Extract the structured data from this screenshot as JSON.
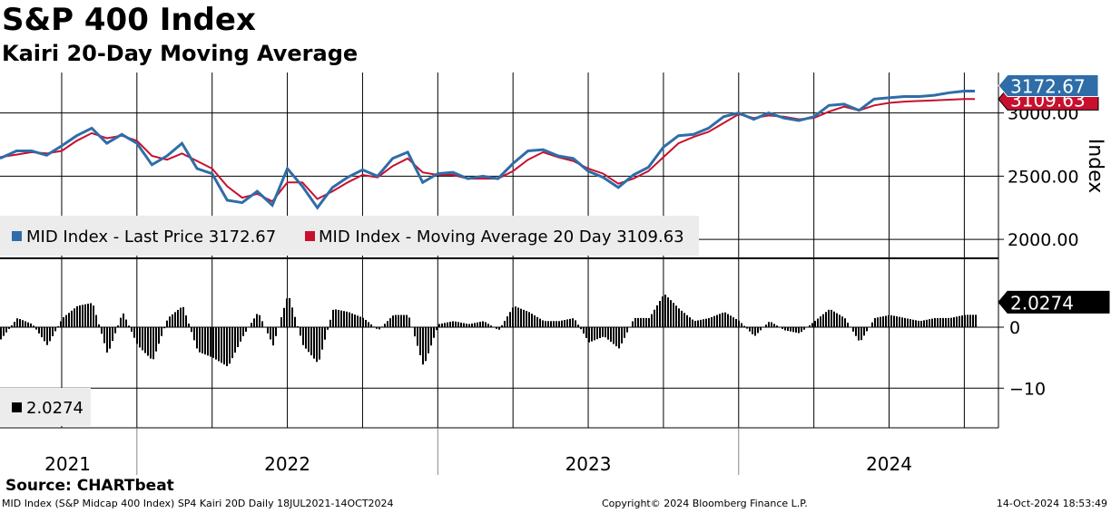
{
  "header": {
    "title": "S&P 400 Index",
    "subtitle": "Kairi 20-Day Moving Average"
  },
  "footer": {
    "source": "Source: CHARTbeat",
    "left": "MID Index (S&P Midcap 400 Index) SP4 Kairi 20D  Daily 18JUL2021-14OCT2024",
    "center": "Copyright© 2024 Bloomberg Finance L.P.",
    "right": "14-Oct-2024 18:53:49"
  },
  "colors": {
    "price": "#2e6da8",
    "ma": "#c8102e",
    "kairi": "#000000",
    "grid": "#000000"
  },
  "chart_data": [
    {
      "type": "line",
      "panel": "upper",
      "ylabel": "Index",
      "ylim": [
        1850,
        3320
      ],
      "yticks": [
        2000,
        2500,
        3000
      ],
      "ytick_labels": [
        "2000.00",
        "2500.00",
        "3000.00"
      ],
      "xlim": [
        2021.545,
        2024.785
      ],
      "x_gridlines": [
        2021.25,
        2021.5,
        2021.75,
        2022.0,
        2022.25,
        2022.5,
        2022.75,
        2023.0,
        2023.25,
        2023.5,
        2023.75,
        2024.0,
        2024.25,
        2024.5,
        2024.75
      ],
      "years": [
        {
          "label": "2021",
          "center": 2021.77
        },
        {
          "label": "2022",
          "center": 2022.5
        },
        {
          "label": "2023",
          "center": 2023.5
        },
        {
          "label": "2024",
          "center": 2024.5
        }
      ],
      "year_separators": [
        2022.0,
        2023.0,
        2024.0
      ],
      "x": [
        2021.545,
        2021.6,
        2021.65,
        2021.7,
        2021.75,
        2021.8,
        2021.85,
        2021.9,
        2021.95,
        2022.0,
        2022.05,
        2022.1,
        2022.15,
        2022.2,
        2022.25,
        2022.3,
        2022.35,
        2022.4,
        2022.45,
        2022.5,
        2022.55,
        2022.6,
        2022.65,
        2022.7,
        2022.75,
        2022.8,
        2022.85,
        2022.9,
        2022.95,
        2023.0,
        2023.05,
        2023.1,
        2023.15,
        2023.2,
        2023.25,
        2023.3,
        2023.35,
        2023.4,
        2023.45,
        2023.5,
        2023.55,
        2023.6,
        2023.65,
        2023.7,
        2023.75,
        2023.8,
        2023.85,
        2023.9,
        2023.95,
        2024.0,
        2024.05,
        2024.1,
        2024.15,
        2024.2,
        2024.25,
        2024.3,
        2024.35,
        2024.4,
        2024.45,
        2024.5,
        2024.55,
        2024.6,
        2024.65,
        2024.7,
        2024.75,
        2024.785
      ],
      "series": [
        {
          "name": "MID Index - Last Price",
          "last": "3172.67",
          "legend": "MID Index - Last Price 3172.67",
          "color": "#2e6da8",
          "values": [
            2640,
            2700,
            2700,
            2665,
            2740,
            2820,
            2880,
            2760,
            2830,
            2760,
            2590,
            2660,
            2760,
            2560,
            2520,
            2310,
            2290,
            2380,
            2270,
            2560,
            2420,
            2250,
            2410,
            2490,
            2550,
            2500,
            2640,
            2690,
            2450,
            2520,
            2530,
            2480,
            2500,
            2480,
            2600,
            2700,
            2710,
            2660,
            2640,
            2540,
            2490,
            2410,
            2510,
            2570,
            2730,
            2820,
            2830,
            2880,
            2970,
            3000,
            2950,
            3000,
            2960,
            2940,
            2970,
            3060,
            3070,
            3020,
            3110,
            3120,
            3130,
            3130,
            3140,
            3160,
            3172.67,
            3172.67
          ]
        },
        {
          "name": "MID Index - Moving Average 20 Day",
          "last": "3109.63",
          "legend": "MID Index - Moving Average 20 Day 3109.63",
          "color": "#c8102e",
          "values": [
            2650,
            2670,
            2690,
            2680,
            2700,
            2780,
            2840,
            2800,
            2820,
            2780,
            2660,
            2630,
            2680,
            2620,
            2560,
            2420,
            2330,
            2360,
            2300,
            2450,
            2450,
            2320,
            2380,
            2450,
            2510,
            2490,
            2580,
            2640,
            2530,
            2510,
            2510,
            2480,
            2480,
            2480,
            2540,
            2630,
            2690,
            2650,
            2620,
            2560,
            2520,
            2440,
            2480,
            2540,
            2650,
            2760,
            2810,
            2850,
            2920,
            2990,
            2960,
            2980,
            2970,
            2950,
            2960,
            3010,
            3050,
            3020,
            3060,
            3080,
            3090,
            3095,
            3100,
            3105,
            3109.63,
            3109.63
          ]
        }
      ]
    },
    {
      "type": "bar",
      "panel": "lower",
      "ylim": [
        -16.5,
        11
      ],
      "yticks": [
        0,
        -10
      ],
      "ytick_labels": [
        "0",
        "−10"
      ],
      "series": [
        {
          "name": "Kairi 20D",
          "last": "2.0274",
          "legend": "2.0274",
          "color": "#000000",
          "x": [
            2021.545,
            2021.6,
            2021.65,
            2021.7,
            2021.75,
            2021.8,
            2021.85,
            2021.9,
            2021.95,
            2022.0,
            2022.05,
            2022.1,
            2022.15,
            2022.2,
            2022.25,
            2022.3,
            2022.35,
            2022.4,
            2022.45,
            2022.5,
            2022.55,
            2022.6,
            2022.65,
            2022.7,
            2022.75,
            2022.8,
            2022.85,
            2022.9,
            2022.95,
            2023.0,
            2023.05,
            2023.1,
            2023.15,
            2023.2,
            2023.25,
            2023.3,
            2023.35,
            2023.4,
            2023.45,
            2023.5,
            2023.55,
            2023.6,
            2023.65,
            2023.7,
            2023.75,
            2023.8,
            2023.85,
            2023.9,
            2023.95,
            2024.0,
            2024.05,
            2024.1,
            2024.15,
            2024.2,
            2024.25,
            2024.3,
            2024.35,
            2024.4,
            2024.45,
            2024.5,
            2024.55,
            2024.6,
            2024.65,
            2024.7,
            2024.75,
            2024.785
          ],
          "values": [
            -2.0,
            1.5,
            0.5,
            -3.0,
            1.5,
            3.5,
            4.0,
            -4.5,
            2.5,
            -3.0,
            -5.5,
            1.5,
            3.5,
            -4.0,
            -5.0,
            -6.5,
            -1.5,
            2.5,
            -3.0,
            5.5,
            -3.0,
            -6.0,
            3.0,
            2.5,
            1.5,
            -0.5,
            2.0,
            2.0,
            -6.5,
            0.5,
            1.0,
            0.5,
            1.0,
            -0.5,
            3.5,
            2.5,
            1.0,
            1.0,
            1.5,
            -2.5,
            -1.5,
            -3.5,
            1.5,
            1.5,
            5.5,
            3.0,
            1.0,
            1.5,
            2.5,
            1.0,
            -1.5,
            1.0,
            -0.5,
            -1.0,
            1.0,
            3.0,
            1.5,
            -2.5,
            1.5,
            2.0,
            1.5,
            1.0,
            1.5,
            1.5,
            2.0274,
            2.0274
          ]
        }
      ]
    }
  ]
}
